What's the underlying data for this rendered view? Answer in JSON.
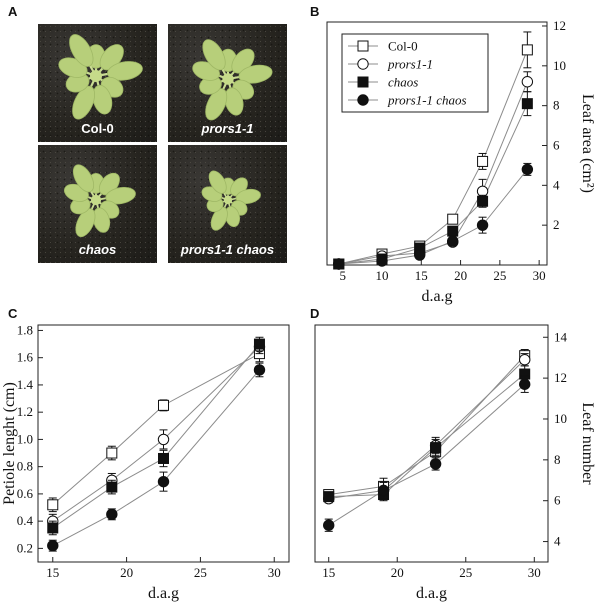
{
  "panel_labels": [
    "A",
    "B",
    "C",
    "D"
  ],
  "photos": [
    {
      "caption": "Col-0",
      "italic": false
    },
    {
      "caption": "prors1-1",
      "italic": true
    },
    {
      "caption": "chaos",
      "italic": true
    },
    {
      "caption": "prors1-1 chaos",
      "italic": true
    }
  ],
  "legend": [
    {
      "label": "Col-0",
      "italic": false
    },
    {
      "label": "prors1-1",
      "italic": true
    },
    {
      "label": "chaos",
      "italic": true
    },
    {
      "label": "prors1-1 chaos",
      "italic": true
    }
  ],
  "colors": {
    "line": "#8c8c8c",
    "marker_fill": "#111111",
    "axis": "#222222",
    "plant": "#b7cf7a"
  },
  "chart_data": [
    {
      "id": "B",
      "type": "line",
      "xlabel": "d.a.g",
      "ylabel": "Leaf area (cm²)",
      "xlim": [
        3,
        31
      ],
      "ylim": [
        0,
        12.2
      ],
      "xticks": [
        5,
        10,
        15,
        20,
        25,
        30
      ],
      "yticks": [
        2,
        4,
        6,
        8,
        10,
        12
      ],
      "yaxis_side": "right",
      "legend_position": "top-left",
      "series": [
        {
          "name": "Col-0",
          "marker": "open-square",
          "x": [
            4.5,
            10,
            14.8,
            19,
            22.8,
            28.5
          ],
          "y": [
            0.05,
            0.55,
            0.95,
            2.3,
            5.2,
            10.8
          ],
          "err": [
            0.1,
            0.1,
            0.1,
            0.2,
            0.4,
            0.9
          ]
        },
        {
          "name": "prors1-1",
          "marker": "open-circle",
          "x": [
            4.5,
            10,
            14.8,
            19,
            22.8,
            28.5
          ],
          "y": [
            0.05,
            0.45,
            0.6,
            1.15,
            3.7,
            9.2
          ],
          "err": [
            0.1,
            0.1,
            0.1,
            0.15,
            0.6,
            0.5
          ]
        },
        {
          "name": "chaos",
          "marker": "filled-square",
          "x": [
            4.5,
            10,
            14.8,
            19,
            22.8,
            28.5
          ],
          "y": [
            0.05,
            0.3,
            0.85,
            1.7,
            3.2,
            8.1
          ],
          "err": [
            0.1,
            0.1,
            0.1,
            0.2,
            0.3,
            0.6
          ]
        },
        {
          "name": "prors1-1 chaos",
          "marker": "filled-circle",
          "x": [
            4.5,
            10,
            14.8,
            19,
            22.8,
            28.5
          ],
          "y": [
            0.05,
            0.2,
            0.5,
            1.2,
            2.0,
            4.8
          ],
          "err": [
            0.1,
            0.1,
            0.1,
            0.15,
            0.4,
            0.3
          ]
        }
      ]
    },
    {
      "id": "C",
      "type": "line",
      "xlabel": "d.a.g",
      "ylabel": "Petiole lenght (cm)",
      "xlim": [
        14,
        31
      ],
      "ylim": [
        0.1,
        1.84
      ],
      "xticks": [
        15,
        20,
        25,
        30
      ],
      "yticks": [
        0.2,
        0.4,
        0.6,
        0.8,
        1.0,
        1.2,
        1.4,
        1.6,
        1.8
      ],
      "ytick_labels": [
        "0.2",
        "0.4",
        "0.6",
        "0.8",
        "1.0",
        "1.2",
        "1.4",
        "1.6",
        "1.8"
      ],
      "yaxis_side": "left",
      "series": [
        {
          "name": "Col-0",
          "marker": "open-square",
          "x": [
            15,
            19,
            22.5,
            29
          ],
          "y": [
            0.52,
            0.9,
            1.25,
            1.63
          ],
          "err": [
            0.05,
            0.05,
            0.04,
            0.06
          ]
        },
        {
          "name": "prors1-1",
          "marker": "open-circle",
          "x": [
            15,
            19,
            22.5,
            29
          ],
          "y": [
            0.4,
            0.7,
            1.0,
            1.68
          ],
          "err": [
            0.05,
            0.05,
            0.07,
            0.05
          ]
        },
        {
          "name": "chaos",
          "marker": "filled-square",
          "x": [
            15,
            19,
            22.5,
            29
          ],
          "y": [
            0.35,
            0.65,
            0.86,
            1.7
          ],
          "err": [
            0.05,
            0.05,
            0.06,
            0.05
          ]
        },
        {
          "name": "prors1-1 chaos",
          "marker": "filled-circle",
          "x": [
            15,
            19,
            22.5,
            29
          ],
          "y": [
            0.22,
            0.45,
            0.69,
            1.51
          ],
          "err": [
            0.04,
            0.04,
            0.07,
            0.05
          ]
        }
      ]
    },
    {
      "id": "D",
      "type": "line",
      "xlabel": "d.a.g",
      "ylabel": "Leaf number",
      "xlim": [
        14,
        31
      ],
      "ylim": [
        3,
        14.6
      ],
      "xticks": [
        15,
        20,
        25,
        30
      ],
      "yticks": [
        4,
        6,
        8,
        10,
        12,
        14
      ],
      "yaxis_side": "right",
      "series": [
        {
          "name": "Col-0",
          "marker": "open-square",
          "x": [
            15,
            19,
            22.8,
            29.3
          ],
          "y": [
            6.3,
            6.7,
            8.4,
            13.1
          ],
          "err": [
            0.2,
            0.4,
            0.4,
            0.3
          ]
        },
        {
          "name": "prors1-1",
          "marker": "open-circle",
          "x": [
            15,
            19,
            22.8,
            29.3
          ],
          "y": [
            6.1,
            6.5,
            8.7,
            12.9
          ],
          "err": [
            0.2,
            0.4,
            0.4,
            0.3
          ]
        },
        {
          "name": "chaos",
          "marker": "filled-square",
          "x": [
            15,
            19,
            22.8,
            29.3
          ],
          "y": [
            6.2,
            6.3,
            8.6,
            12.2
          ],
          "err": [
            0.2,
            0.3,
            0.4,
            0.4
          ]
        },
        {
          "name": "prors1-1 chaos",
          "marker": "filled-circle",
          "x": [
            15,
            19,
            22.8,
            29.3
          ],
          "y": [
            4.8,
            6.5,
            7.8,
            11.7
          ],
          "err": [
            0.3,
            0.4,
            0.3,
            0.4
          ]
        }
      ]
    }
  ]
}
